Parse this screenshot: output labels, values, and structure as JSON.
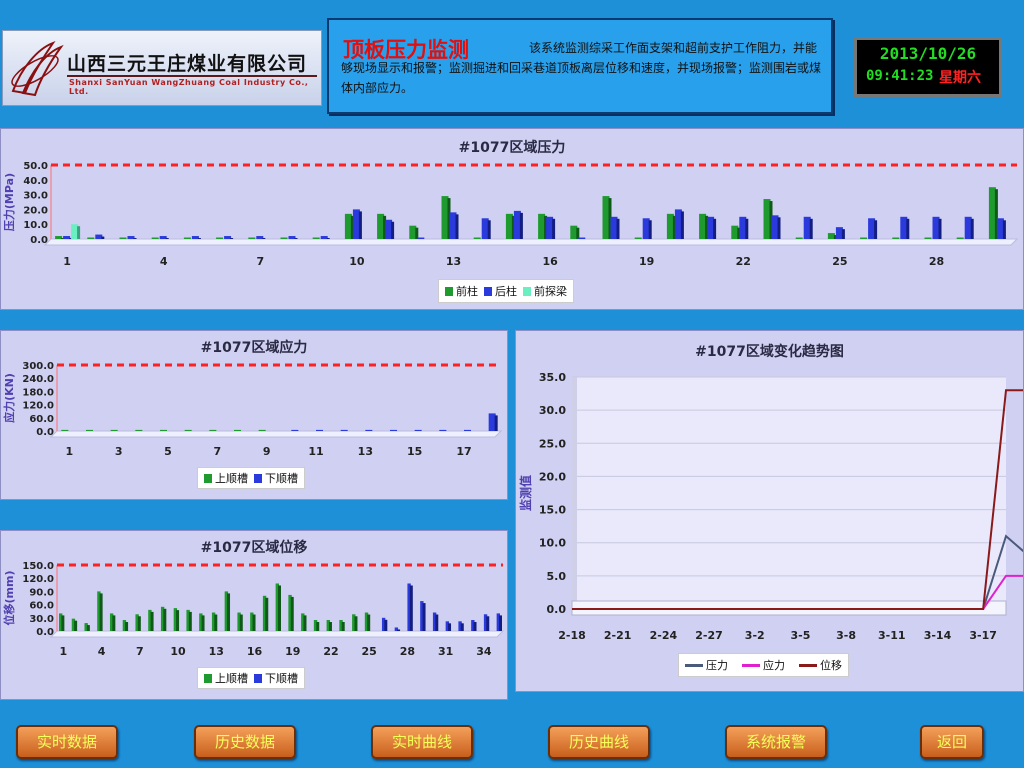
{
  "company": {
    "name_cn": "山西三元王庄煤业有限公司",
    "name_en": "Shanxi SanYuan WangZhuang Coal Industry Co., Ltd."
  },
  "header": {
    "title": "顶板压力监测",
    "description": "该系统监测综采工作面支架和超前支护工作阻力，并能够现场显示和报警；监测掘进和回采巷道顶板离层位移和速度，并现场报警；监测围岩或煤体内部应力。"
  },
  "clock": {
    "date": "2013/10/26",
    "time": "09:41:23",
    "weekday": "星期六"
  },
  "colors": {
    "green": "#1f9a2e",
    "blue": "#2a3adc",
    "cyan": "#6af0c0",
    "alarm": "#ff2020",
    "pressure": "#4a5a7a",
    "stress": "#e020d0",
    "displacement": "#8a1a1a"
  },
  "nav": [
    "实时数据",
    "历史数据",
    "实时曲线",
    "历史曲线",
    "系统报警",
    "返回"
  ],
  "chart_data": [
    {
      "type": "bar",
      "title": "#1077区域压力",
      "ylabel": "压力(MPa)",
      "ylim": [
        0,
        50
      ],
      "yticks": [
        "0.0",
        "10.0",
        "20.0",
        "30.0",
        "40.0",
        "50.0"
      ],
      "alarm_line": 50,
      "categories": [
        1,
        2,
        3,
        4,
        5,
        6,
        7,
        8,
        9,
        10,
        11,
        12,
        13,
        14,
        15,
        16,
        17,
        18,
        19,
        20,
        21,
        22,
        23,
        24,
        25,
        26,
        27,
        28,
        29,
        30
      ],
      "xtick_labels": [
        "1",
        "4",
        "7",
        "10",
        "13",
        "16",
        "19",
        "22",
        "25",
        "28"
      ],
      "xtick_every": 3,
      "series": [
        {
          "name": "前柱",
          "values": [
            2,
            1,
            1,
            1,
            1,
            1,
            1,
            1,
            1,
            17,
            17,
            9,
            29,
            1,
            17,
            17,
            9,
            29,
            1,
            17,
            17,
            9,
            27,
            1,
            4,
            1,
            1,
            1,
            1,
            35
          ]
        },
        {
          "name": "后柱",
          "values": [
            2,
            3,
            2,
            2,
            2,
            2,
            2,
            2,
            2,
            20,
            13,
            1,
            18,
            14,
            19,
            15,
            1,
            15,
            14,
            20,
            15,
            15,
            16,
            15,
            8,
            14,
            15,
            15,
            15,
            14
          ]
        },
        {
          "name": "前探梁",
          "values": [
            10,
            0,
            0,
            0,
            0,
            0,
            0,
            0,
            0,
            0,
            0,
            0,
            0,
            0,
            0,
            0,
            0,
            0,
            0,
            0,
            0,
            0,
            0,
            0,
            0,
            0,
            0,
            0,
            0,
            0
          ]
        }
      ]
    },
    {
      "type": "bar",
      "title": "#1077区域应力",
      "ylabel": "应力(KN)",
      "ylim": [
        0,
        300
      ],
      "yticks": [
        "0.0",
        "60.0",
        "120.0",
        "180.0",
        "240.0",
        "300.0"
      ],
      "alarm_line": 300,
      "categories": [
        1,
        2,
        3,
        4,
        5,
        6,
        7,
        8,
        9,
        10,
        11,
        12,
        13,
        14,
        15,
        16,
        17,
        18
      ],
      "xtick_labels": [
        "1",
        "3",
        "5",
        "7",
        "9",
        "11",
        "13",
        "15",
        "17"
      ],
      "xtick_every": 2,
      "series": [
        {
          "name": "上顺槽",
          "values": [
            5,
            5,
            5,
            5,
            5,
            5,
            5,
            5,
            5,
            0,
            0,
            0,
            0,
            0,
            0,
            0,
            0,
            0
          ]
        },
        {
          "name": "下顺槽",
          "values": [
            0,
            0,
            0,
            0,
            0,
            0,
            0,
            0,
            0,
            5,
            5,
            5,
            5,
            5,
            5,
            5,
            5,
            80
          ]
        }
      ]
    },
    {
      "type": "bar",
      "title": "#1077区域位移",
      "ylabel": "位移(mm)",
      "ylim": [
        0,
        150
      ],
      "yticks": [
        "0.0",
        "30.0",
        "60.0",
        "90.0",
        "120.0",
        "150.0"
      ],
      "alarm_line": 150,
      "categories": [
        1,
        2,
        3,
        4,
        5,
        6,
        7,
        8,
        9,
        10,
        11,
        12,
        13,
        14,
        15,
        16,
        17,
        18,
        19,
        20,
        21,
        22,
        23,
        24,
        25,
        26,
        27,
        28,
        29,
        30,
        31,
        32,
        33,
        34,
        35
      ],
      "xtick_labels": [
        "1",
        "4",
        "7",
        "10",
        "13",
        "16",
        "19",
        "22",
        "25",
        "28",
        "31",
        "34"
      ],
      "xtick_every": 3,
      "series": [
        {
          "name": "上顺槽",
          "values": [
            40,
            28,
            18,
            90,
            40,
            25,
            38,
            48,
            55,
            52,
            48,
            40,
            42,
            90,
            42,
            42,
            80,
            108,
            82,
            40,
            25,
            25,
            25,
            38,
            42,
            0,
            0,
            0,
            0,
            0,
            0,
            0,
            0,
            0,
            0
          ]
        },
        {
          "name": "下顺槽",
          "values": [
            0,
            0,
            0,
            0,
            0,
            0,
            0,
            0,
            0,
            0,
            0,
            0,
            0,
            0,
            0,
            0,
            0,
            0,
            0,
            0,
            0,
            0,
            0,
            0,
            0,
            30,
            8,
            108,
            68,
            42,
            22,
            22,
            25,
            38,
            40
          ]
        }
      ]
    },
    {
      "type": "line",
      "title": "#1077区域变化趋势图",
      "ylabel": "监测值",
      "ylim": [
        0,
        35
      ],
      "yticks": [
        "0.0",
        "5.0",
        "10.0",
        "15.0",
        "20.0",
        "25.0",
        "30.0",
        "35.0"
      ],
      "x": [
        "2-18",
        "2-21",
        "2-24",
        "2-27",
        "3-2",
        "3-5",
        "3-8",
        "3-11",
        "3-14",
        "3-17"
      ],
      "series": [
        {
          "name": "压力",
          "points": [
            [
              0,
              0
            ],
            [
              9,
              0
            ],
            [
              9.5,
              11
            ],
            [
              10,
              8
            ]
          ]
        },
        {
          "name": "应力",
          "points": [
            [
              0,
              0
            ],
            [
              9,
              0
            ],
            [
              9.5,
              5
            ],
            [
              10,
              5
            ]
          ]
        },
        {
          "name": "位移",
          "points": [
            [
              0,
              0
            ],
            [
              9,
              0
            ],
            [
              9.5,
              33
            ],
            [
              10,
              33
            ]
          ]
        }
      ]
    }
  ]
}
